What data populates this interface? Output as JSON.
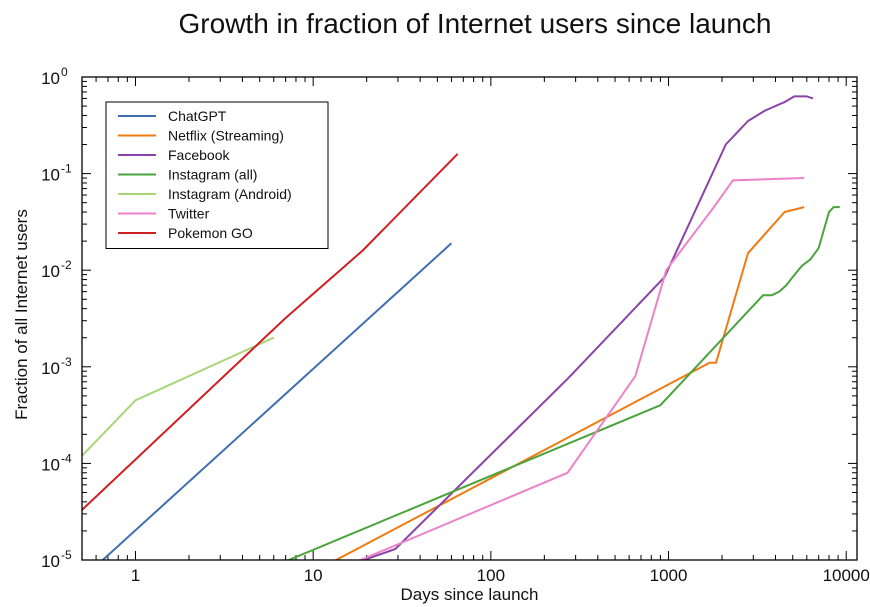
{
  "chart_data": {
    "type": "line",
    "title": "Growth in fraction of Internet users since launch",
    "xlabel": "Days since launch",
    "ylabel": "Fraction of all Internet users",
    "xscale": "log",
    "yscale": "log",
    "xlim": [
      0.5,
      11500
    ],
    "ylim": [
      1e-05,
      1
    ],
    "x_ticks": [
      {
        "value": 1,
        "label": "1"
      },
      {
        "value": 10,
        "label": "10"
      },
      {
        "value": 100,
        "label": "100"
      },
      {
        "value": 1000,
        "label": "1000"
      },
      {
        "value": 10000,
        "label": "10000"
      }
    ],
    "y_ticks": [
      {
        "value": 1e-05,
        "base": "10",
        "exp": "-5"
      },
      {
        "value": 0.0001,
        "base": "10",
        "exp": "-4"
      },
      {
        "value": 0.001,
        "base": "10",
        "exp": "-3"
      },
      {
        "value": 0.01,
        "base": "10",
        "exp": "-2"
      },
      {
        "value": 0.1,
        "base": "10",
        "exp": "-1"
      },
      {
        "value": 1,
        "base": "10",
        "exp": "0"
      }
    ],
    "grid": false,
    "legend_position": "top-left",
    "series": [
      {
        "name": "ChatGPT",
        "color": "#3f6fb0",
        "points": [
          [
            0.55,
            7.5e-06
          ],
          [
            60,
            0.019
          ]
        ]
      },
      {
        "name": "Netflix (Streaming)",
        "color": "#f07b12",
        "points": [
          [
            10,
            7.5e-06
          ],
          [
            1700,
            0.0011
          ],
          [
            1850,
            0.0011
          ],
          [
            2800,
            0.015
          ],
          [
            4500,
            0.04
          ],
          [
            5800,
            0.045
          ]
        ]
      },
      {
        "name": "Facebook",
        "color": "#8a44a8",
        "points": [
          [
            15,
            8.5e-06
          ],
          [
            29,
            1.3e-05
          ],
          [
            270,
            0.00075
          ],
          [
            950,
            0.0085
          ],
          [
            2100,
            0.2
          ],
          [
            2800,
            0.35
          ],
          [
            3500,
            0.45
          ],
          [
            4500,
            0.55
          ],
          [
            5100,
            0.63
          ],
          [
            6000,
            0.63
          ],
          [
            6500,
            0.6
          ]
        ]
      },
      {
        "name": "Instagram (all)",
        "color": "#4aa33c",
        "points": [
          [
            5,
            7.5e-06
          ],
          [
            900,
            0.0004
          ],
          [
            3400,
            0.0055
          ],
          [
            3800,
            0.0055
          ],
          [
            4200,
            0.006
          ],
          [
            4600,
            0.007
          ],
          [
            5000,
            0.0085
          ],
          [
            5600,
            0.011
          ],
          [
            6300,
            0.013
          ],
          [
            7000,
            0.017
          ],
          [
            8000,
            0.04
          ],
          [
            8500,
            0.045
          ],
          [
            9200,
            0.045
          ]
        ]
      },
      {
        "name": "Instagram (Android)",
        "color": "#a9d579",
        "points": [
          [
            0.5,
            0.00012
          ],
          [
            1,
            0.00045
          ],
          [
            6,
            0.002
          ]
        ]
      },
      {
        "name": "Twitter",
        "color": "#ec82c9",
        "points": [
          [
            15,
            8.5e-06
          ],
          [
            270,
            8e-05
          ],
          [
            650,
            0.0008
          ],
          [
            970,
            0.01
          ],
          [
            1800,
            0.045
          ],
          [
            2300,
            0.085
          ],
          [
            5800,
            0.09
          ]
        ]
      },
      {
        "name": "Pokemon GO",
        "color": "#d01f24",
        "points": [
          [
            0.5,
            3.3e-05
          ],
          [
            7,
            0.0032
          ],
          [
            19,
            0.016
          ],
          [
            65,
            0.16
          ]
        ]
      }
    ]
  }
}
